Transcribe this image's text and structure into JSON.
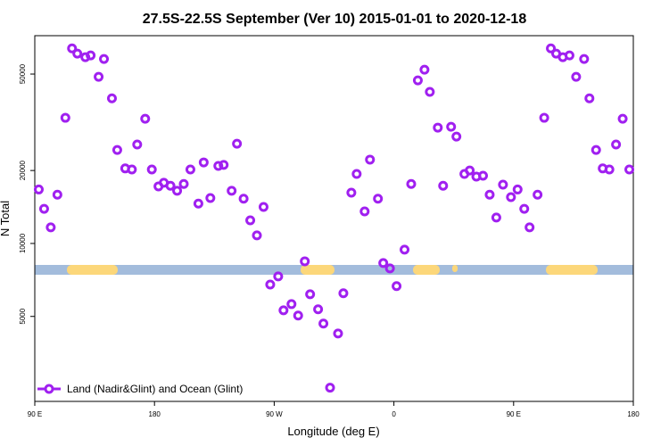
{
  "chart_data": {
    "type": "scatter",
    "title": "27.5S-22.5S September (Ver 10)   2015-01-01 to 2020-12-18",
    "x_label": "Longitude (deg E)",
    "y_label": "N Total",
    "log_y": true,
    "color": "#a020f0",
    "xlim": [
      90,
      540
    ],
    "ylim": [
      2230,
      72000
    ],
    "xticks": [
      {
        "value": 90,
        "label": "90 E"
      },
      180,
      {
        "value": 270,
        "label": "90 W"
      },
      {
        "value": 360,
        "label": "0"
      },
      {
        "value": 450,
        "label": "90 E"
      },
      {
        "value": 540,
        "label": "180"
      }
    ],
    "yticks": [
      5000,
      10000,
      20000,
      50000
    ],
    "legend_position": "lower left",
    "series": [
      {
        "name": "Land (Nadir&Glint) and Ocean (Glint)",
        "color": "#a020f0",
        "x": [
          93,
          97,
          102,
          107,
          113,
          118,
          122,
          128,
          132,
          138,
          142,
          148,
          152,
          158,
          163,
          167,
          173,
          178,
          183,
          187,
          192,
          197,
          202,
          207,
          213,
          217,
          222,
          228,
          232,
          238,
          242,
          247,
          252,
          257,
          262,
          267,
          273,
          277,
          283,
          288,
          293,
          297,
          303,
          307,
          312,
          318,
          322,
          328,
          332,
          338,
          342,
          348,
          352,
          357,
          362,
          368,
          373,
          378,
          383,
          387,
          393,
          397,
          403,
          407,
          413,
          417,
          422,
          427,
          432,
          437,
          442,
          448,
          453,
          458,
          462,
          468,
          473,
          478,
          482,
          487,
          492,
          497,
          503,
          507,
          512,
          517,
          522,
          527,
          532,
          537
        ],
        "values": [
          16700,
          13900,
          11650,
          15900,
          33000,
          63800,
          60700,
          58700,
          59700,
          48700,
          57700,
          39700,
          24300,
          20400,
          20200,
          25600,
          32700,
          20200,
          17200,
          17800,
          17300,
          16500,
          17600,
          20200,
          14600,
          21600,
          15400,
          20900,
          21100,
          16500,
          25800,
          15300,
          12460,
          10800,
          14150,
          6770,
          7310,
          5300,
          5620,
          5040,
          8440,
          6170,
          5350,
          4670,
          2540,
          4250,
          6230,
          16200,
          19350,
          13560,
          22180,
          15300,
          8300,
          7890,
          6670,
          9430,
          17600,
          47100,
          52100,
          42200,
          30060,
          17300,
          30300,
          27600,
          19350,
          20000,
          18870,
          19030,
          15900,
          12790,
          17490,
          15530,
          16700,
          13900,
          11650,
          15900,
          33000,
          63800,
          60700,
          58700,
          59700,
          48700,
          57700,
          39700,
          24300,
          20400,
          20200,
          25600,
          32700,
          20200
        ]
      }
    ]
  }
}
